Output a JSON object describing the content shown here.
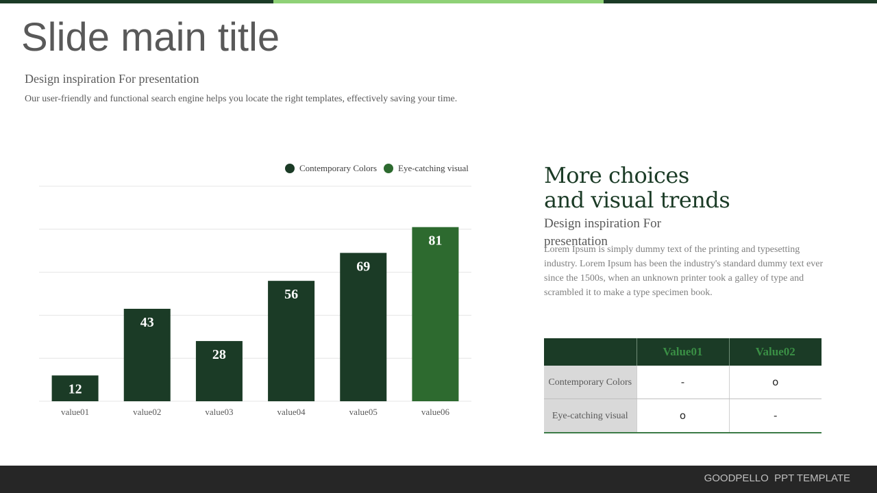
{
  "colors": {
    "dark_green": "#1b3b26",
    "mid_green": "#2d6a2f",
    "light_green": "#8fd177",
    "title_gray": "#595959",
    "footer_bg": "#262626"
  },
  "slide": {
    "title": "Slide main title",
    "subtitle": "Design inspiration For presentation",
    "description": "Our user-friendly and functional search engine helps you locate the right templates, effectively saving your time."
  },
  "chart_data": {
    "type": "bar",
    "categories": [
      "value01",
      "value02",
      "value03",
      "value04",
      "value05",
      "value06"
    ],
    "values": [
      12,
      43,
      28,
      56,
      69,
      81
    ],
    "highlight_index": 5,
    "legend": [
      {
        "name": "Contemporary Colors",
        "color": "#1b3b26"
      },
      {
        "name": "Eye-catching visual",
        "color": "#2d6a2f"
      }
    ],
    "legend_position": "top-right",
    "ylim": [
      0,
      100
    ],
    "grid": true,
    "title": "",
    "xlabel": "",
    "ylabel": ""
  },
  "right_panel": {
    "heading_line1": "More choices",
    "heading_line2": "and visual trends",
    "subheading": "Design inspiration For presentation",
    "body": "Lorem Ipsum is simply dummy text of the printing and typesetting industry. Lorem Ipsum has been the industry's standard dummy text ever since the 1500s, when an unknown printer took a galley of type and scrambled it to make a type specimen book."
  },
  "table": {
    "headers": [
      "",
      "Value01",
      "Value02"
    ],
    "rows": [
      {
        "label": "Contemporary Colors",
        "v1": "-",
        "v2": "o"
      },
      {
        "label": "Eye-catching visual",
        "v1": "o",
        "v2": "-"
      }
    ]
  },
  "footer": {
    "text": "GOODPELLO  PPT TEMPLATE"
  }
}
